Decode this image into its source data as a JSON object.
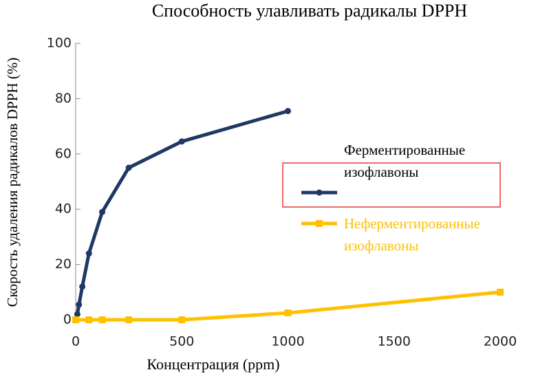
{
  "chart_data": {
    "type": "line",
    "title": "Способность улавливать радикалы DPPH",
    "xlabel": "Концентрация (ppm)",
    "ylabel": "Скорость удаления радикалов DPPH (%)",
    "xlim": [
      0,
      2000
    ],
    "xticks": [
      0,
      500,
      1000,
      1500,
      2000
    ],
    "ylim": [
      0,
      100
    ],
    "yticks": [
      0,
      20,
      40,
      60,
      80,
      100
    ],
    "grid": false,
    "series": [
      {
        "name": "Ферментированные изофлавоны",
        "color": "#1f3864",
        "x": [
          7.8,
          15.6,
          31.25,
          62.5,
          125,
          250,
          500,
          1000
        ],
        "values": [
          2,
          5.5,
          12,
          24,
          39,
          55,
          64.5,
          75.5
        ]
      },
      {
        "name": "Неферментированные изофлавоны",
        "color": "#ffc000",
        "x": [
          0,
          62.5,
          125,
          250,
          500,
          1000,
          2000
        ],
        "values": [
          0,
          0,
          0,
          0,
          0,
          2.5,
          10
        ]
      }
    ]
  }
}
